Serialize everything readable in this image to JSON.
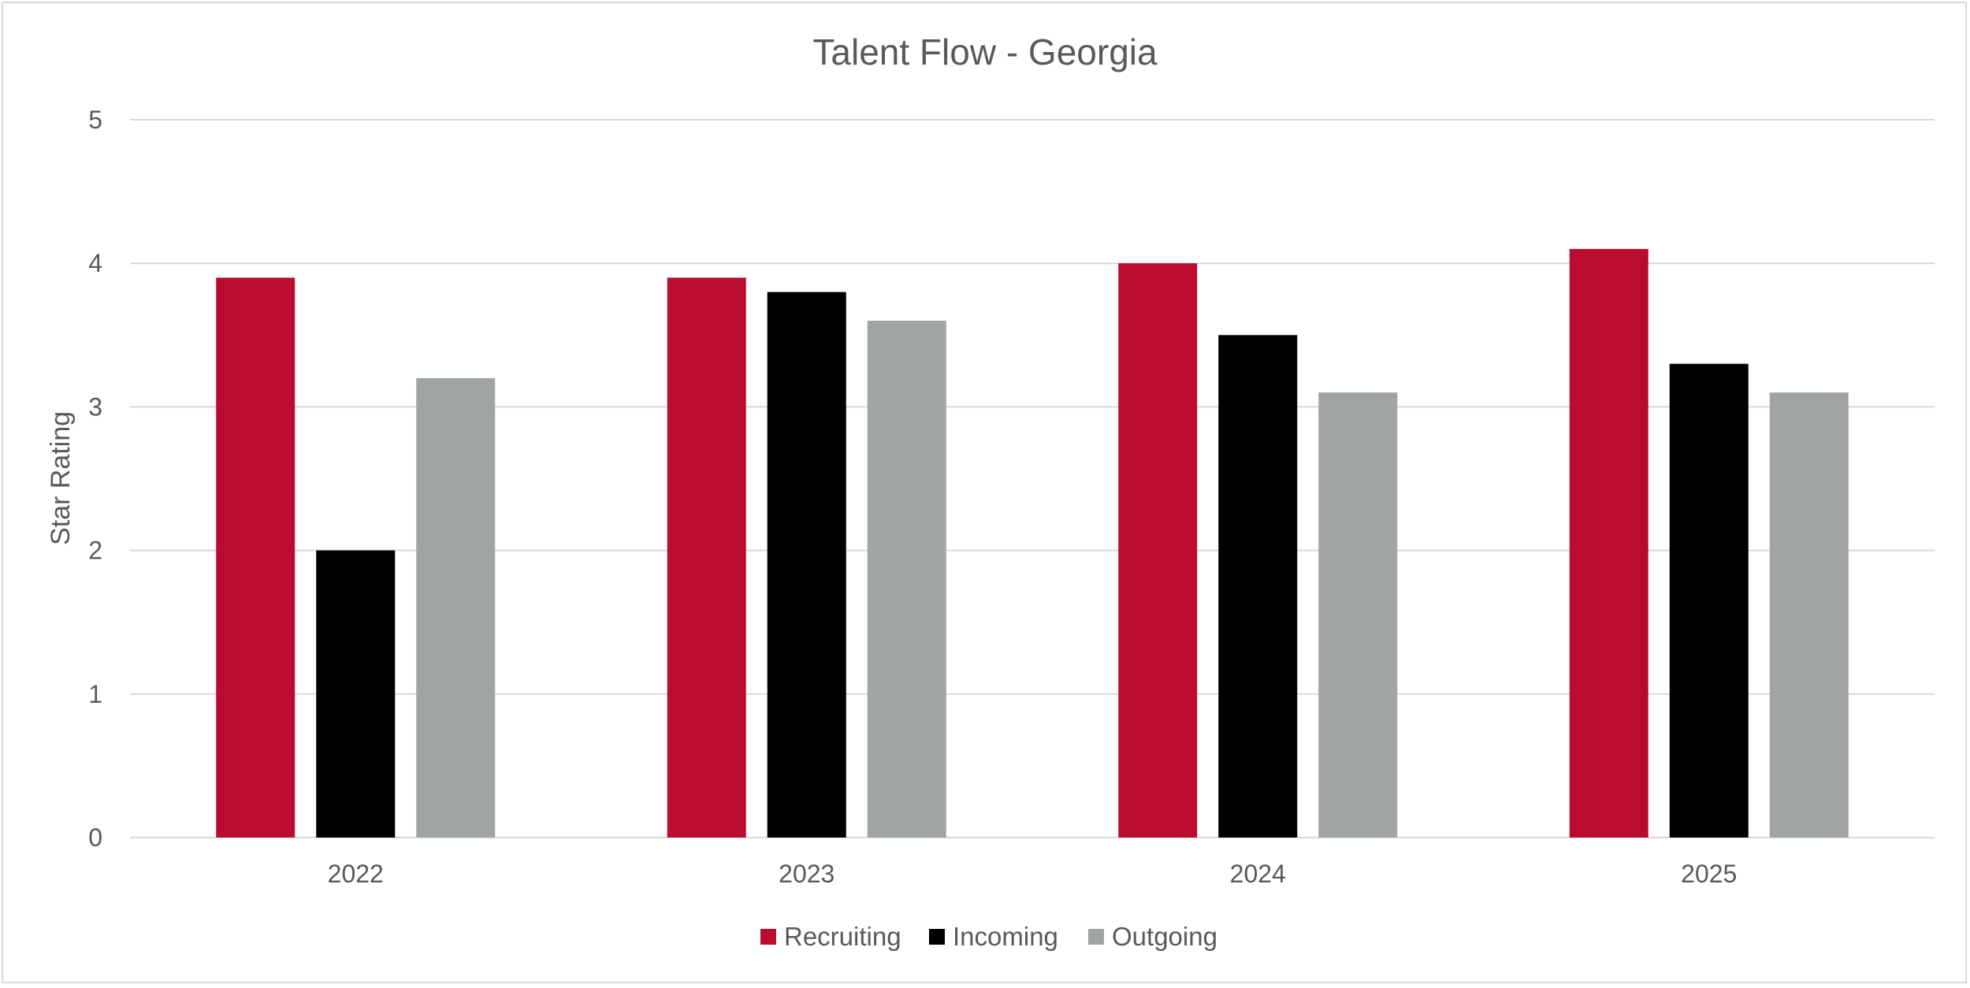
{
  "chart_data": {
    "type": "bar",
    "title": "Talent Flow - Georgia",
    "xlabel": "",
    "ylabel": "Star Rating",
    "ylim": [
      0,
      5
    ],
    "yticks": [
      0,
      1,
      2,
      3,
      4,
      5
    ],
    "grid": true,
    "legend_position": "bottom",
    "categories": [
      "2022",
      "2023",
      "2024",
      "2025"
    ],
    "series": [
      {
        "name": "Recruiting",
        "color": "#ba0c2f",
        "values": [
          3.9,
          3.9,
          4.0,
          4.1
        ]
      },
      {
        "name": "Incoming",
        "color": "#000000",
        "values": [
          2.0,
          3.8,
          3.5,
          3.3
        ]
      },
      {
        "name": "Outgoing",
        "color": "#a0a4a4",
        "values": [
          3.2,
          3.6,
          3.1,
          3.1
        ]
      }
    ]
  }
}
